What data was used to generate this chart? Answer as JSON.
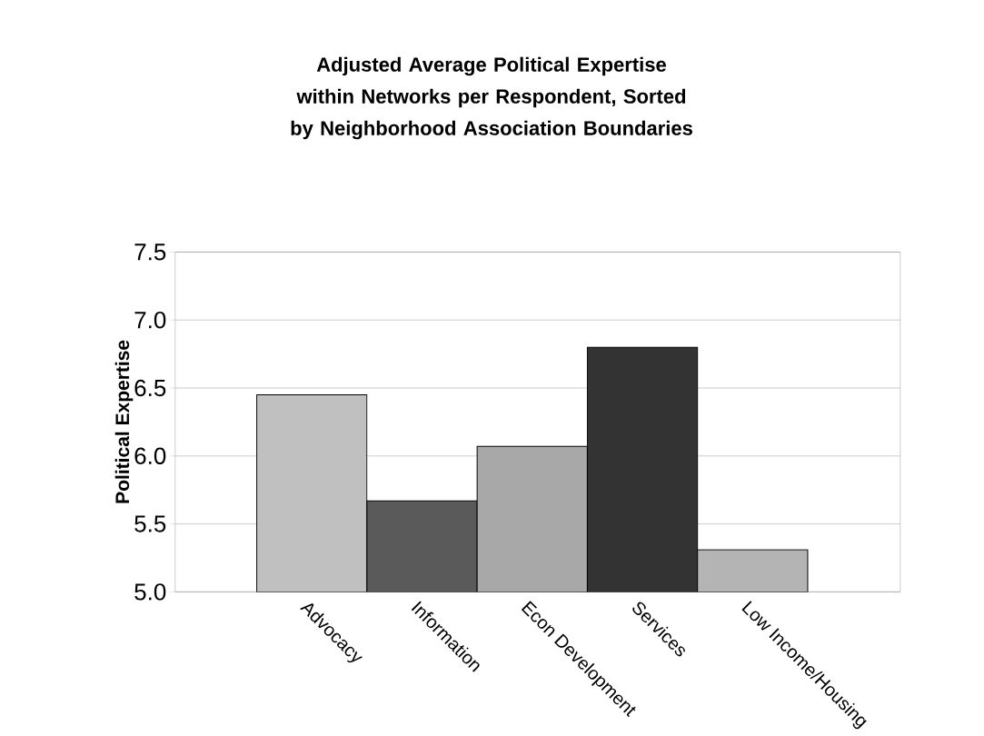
{
  "chart_data": {
    "type": "bar",
    "title": "Adjusted Average Political Expertise within Networks per Respondent, Sorted by Neighborhood Association Boundaries",
    "ylabel": "Political Expertise",
    "categories": [
      "Advocacy",
      "Information",
      "Econ Development",
      "Services",
      "Low Income/Housing"
    ],
    "values": [
      6.45,
      5.67,
      6.07,
      6.8,
      5.31
    ],
    "colors": [
      "#c0c0c0",
      "#5a5a5a",
      "#a8a8a8",
      "#333333",
      "#b4b4b4"
    ],
    "ylim": [
      5.0,
      7.5
    ],
    "yticks": [
      {
        "value": 5.0,
        "label": "5.0"
      },
      {
        "value": 5.5,
        "label": "5.5"
      },
      {
        "value": 6.0,
        "label": "6.0"
      },
      {
        "value": 6.5,
        "label": "6.5"
      },
      {
        "value": 7.0,
        "label": "7.0"
      },
      {
        "value": 7.5,
        "label": "7.5"
      }
    ],
    "grid": "y"
  }
}
